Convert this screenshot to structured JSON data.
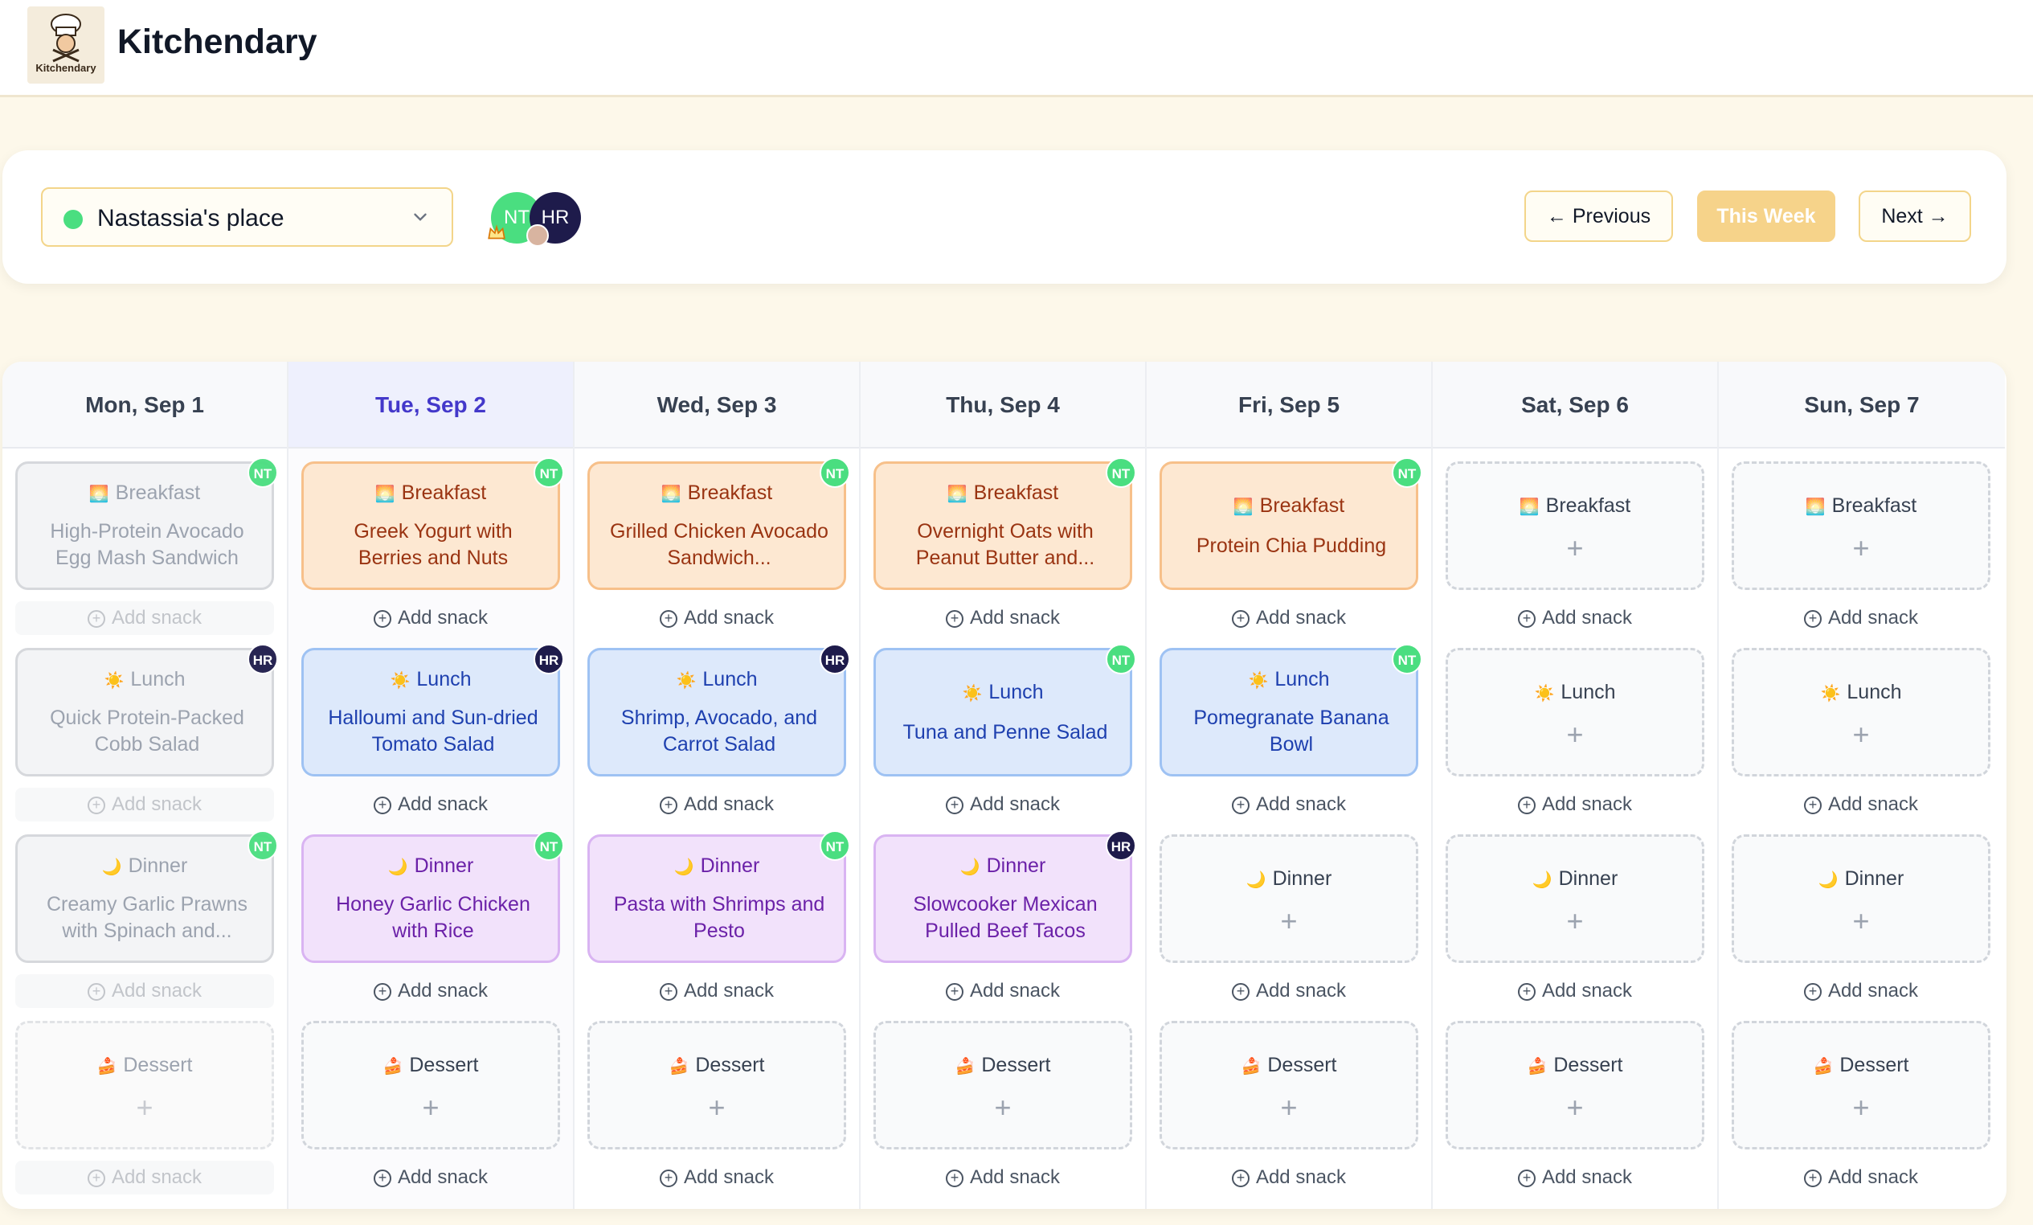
{
  "app": {
    "title": "Kitchendary",
    "logo_text": "Kitchendary"
  },
  "controls": {
    "place": "Nastassia's place",
    "members": [
      {
        "initials": "NT",
        "color": "#4ade80"
      },
      {
        "initials": "HR",
        "color": "#1e1b4b"
      }
    ],
    "prev_label": "← Previous",
    "this_week_label": "This Week",
    "next_label": "Next →"
  },
  "meal_labels": {
    "breakfast": "Breakfast",
    "lunch": "Lunch",
    "dinner": "Dinner",
    "dessert": "Dessert",
    "add_snack": "Add snack",
    "add": "+"
  },
  "days": [
    {
      "label": "Mon, Sep 1",
      "today": false,
      "past": true,
      "meals": {
        "breakfast": {
          "name": "High-Protein Avocado Egg Mash Sandwich",
          "by": "NT"
        },
        "lunch": {
          "name": "Quick Protein-Packed Cobb Salad",
          "by": "HR"
        },
        "dinner": {
          "name": "Creamy Garlic Prawns with Spinach and...",
          "by": "NT"
        },
        "dessert": null
      }
    },
    {
      "label": "Tue, Sep 2",
      "today": true,
      "past": false,
      "meals": {
        "breakfast": {
          "name": "Greek Yogurt with Berries and Nuts",
          "by": "NT"
        },
        "lunch": {
          "name": "Halloumi and Sun-dried Tomato Salad",
          "by": "HR"
        },
        "dinner": {
          "name": "Honey Garlic Chicken with Rice",
          "by": "NT"
        },
        "dessert": null
      }
    },
    {
      "label": "Wed, Sep 3",
      "today": false,
      "past": false,
      "meals": {
        "breakfast": {
          "name": "Grilled Chicken Avocado Sandwich...",
          "by": "NT"
        },
        "lunch": {
          "name": "Shrimp, Avocado, and Carrot Salad",
          "by": "HR"
        },
        "dinner": {
          "name": "Pasta with Shrimps and Pesto",
          "by": "NT"
        },
        "dessert": null
      }
    },
    {
      "label": "Thu, Sep 4",
      "today": false,
      "past": false,
      "meals": {
        "breakfast": {
          "name": "Overnight Oats with Peanut Butter and...",
          "by": "NT"
        },
        "lunch": {
          "name": "Tuna and Penne Salad",
          "by": "NT"
        },
        "dinner": {
          "name": "Slowcooker Mexican Pulled Beef Tacos",
          "by": "HR"
        },
        "dessert": null
      }
    },
    {
      "label": "Fri, Sep 5",
      "today": false,
      "past": false,
      "meals": {
        "breakfast": {
          "name": "Protein Chia Pudding",
          "by": "NT"
        },
        "lunch": {
          "name": "Pomegranate Banana Bowl",
          "by": "NT"
        },
        "dinner": null,
        "dessert": null
      }
    },
    {
      "label": "Sat, Sep 6",
      "today": false,
      "past": false,
      "meals": {
        "breakfast": null,
        "lunch": null,
        "dinner": null,
        "dessert": null
      }
    },
    {
      "label": "Sun, Sep 7",
      "today": false,
      "past": false,
      "meals": {
        "breakfast": null,
        "lunch": null,
        "dinner": null,
        "dessert": null
      }
    }
  ],
  "colors": {
    "accent": "#f6d38a",
    "today_header": "#4338ca",
    "breakfast_bg": "#fde8d2",
    "lunch_bg": "#dde9fb",
    "dinner_bg": "#f2e2fb"
  }
}
